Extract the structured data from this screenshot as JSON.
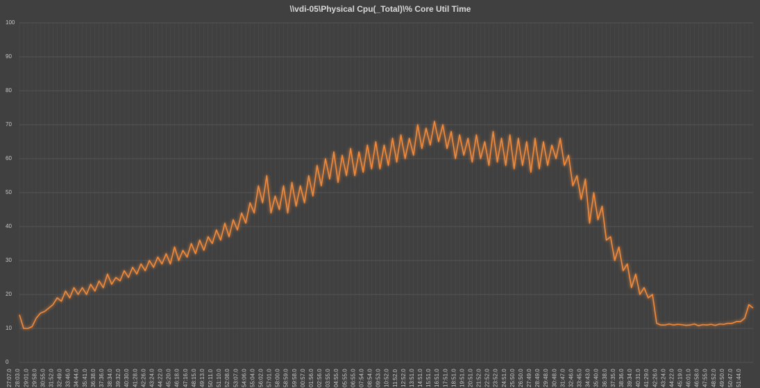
{
  "chart_data": {
    "type": "line",
    "title": "\\\\vdi-05\\Physical Cpu(_Total)\\% Core Util Time",
    "ylim": [
      0,
      100
    ],
    "yticks": [
      0,
      10,
      20,
      30,
      40,
      50,
      60,
      70,
      80,
      90,
      100
    ],
    "grid": true,
    "categories": [
      "27:07.0",
      null,
      "28:03.0",
      null,
      "29:01.0",
      null,
      "29:58.0",
      null,
      "30:55.0",
      null,
      "31:52.0",
      null,
      "32:49.0",
      null,
      "33:46.0",
      null,
      "34:44.0",
      null,
      "35:41.0",
      null,
      "36:38.0",
      null,
      "37:36.0",
      null,
      "38:34.0",
      null,
      "39:32.0",
      null,
      "40:30.0",
      null,
      "41:28.0",
      null,
      "42:26.0",
      null,
      "43:24.0",
      null,
      "44:22.0",
      null,
      "45:20.0",
      null,
      "46:18.0",
      null,
      "47:16.0",
      null,
      "48:15.0",
      null,
      "49:13.0",
      null,
      "50:11.0",
      null,
      "51:10.0",
      null,
      "52:08.0",
      null,
      "53:07.0",
      null,
      "54:06.0",
      null,
      "55:04.0",
      null,
      "56:02.0",
      null,
      "57:01.0",
      null,
      "58:00.0",
      null,
      "58:59.0",
      null,
      "59:58.0",
      null,
      "00:57.0",
      null,
      "01:56.0",
      null,
      "02:56.0",
      null,
      "03:55.0",
      null,
      "04:55.0",
      null,
      "05:55.0",
      null,
      "06:55.0",
      null,
      "07:54.0",
      null,
      "08:54.0",
      null,
      "09:53.0",
      null,
      "10:52.0",
      null,
      "11:52.0",
      null,
      "12:52.0",
      null,
      "13:51.0",
      null,
      "14:51.0",
      null,
      "15:51.0",
      null,
      "16:51.0",
      null,
      "17:51.0",
      null,
      "18:51.0",
      null,
      "19:51.0",
      null,
      "20:51.0",
      null,
      "21:52.0",
      null,
      "22:52.0",
      null,
      "23:52.0",
      null,
      "24:51.0",
      null,
      "25:50.0",
      null,
      "26:50.0",
      null,
      "27:49.0",
      null,
      "28:49.0",
      null,
      "29:48.0",
      null,
      "30:48.0",
      null,
      "31:47.0",
      null,
      "32:46.0",
      null,
      "33:45.0",
      null,
      "34:43.0",
      null,
      "35:40.0",
      null,
      "36:38.0",
      null,
      "37:35.0",
      null,
      "38:36.0",
      null,
      "39:34.0",
      null,
      "40:31.0",
      null,
      "41:29.0",
      null,
      "42:26.0",
      null,
      "43:24.0",
      null,
      "44:22.0",
      null,
      "45:19.0",
      null,
      "46:01.0",
      null,
      "46:58.0",
      null,
      "47:55.0",
      null,
      "48:52.0",
      null,
      "49:50.0",
      null,
      "50:47.0",
      null,
      "51:44.0",
      null
    ],
    "series": [
      {
        "name": "% Core Util Time",
        "color": "#f08a3c",
        "values": [
          14,
          10,
          10,
          10.5,
          13,
          14.5,
          15,
          16,
          17,
          19,
          18,
          21,
          19,
          22,
          20,
          22,
          20,
          23,
          21,
          24,
          22,
          26,
          23,
          25,
          24,
          27,
          25,
          28,
          26,
          29,
          27,
          30,
          28,
          31,
          29,
          32,
          29,
          34,
          30,
          33,
          31,
          35,
          32,
          36,
          33,
          37,
          35,
          39,
          36,
          41,
          37,
          42,
          39,
          44,
          41,
          47,
          44,
          52,
          47,
          55,
          44,
          49,
          45,
          52,
          44,
          53,
          46,
          52,
          47,
          55,
          49,
          58,
          52,
          60,
          54,
          62,
          53,
          61,
          55,
          63,
          55,
          62,
          56,
          64,
          57,
          65,
          57,
          64,
          58,
          66,
          59,
          67,
          60,
          66,
          61,
          70,
          63,
          69,
          64,
          71,
          65,
          70,
          63,
          68,
          60,
          67,
          61,
          66,
          59,
          67,
          60,
          65,
          58,
          68,
          59,
          66,
          58,
          67,
          57,
          66,
          58,
          65,
          56,
          66,
          57,
          65,
          58,
          64,
          60,
          66,
          58,
          61,
          52,
          55,
          48,
          54,
          41,
          50,
          42,
          46,
          36,
          37,
          30,
          34,
          27,
          29,
          22,
          26,
          20,
          22,
          19,
          20,
          11.5,
          11,
          11,
          11.3,
          11,
          11.2,
          11.1,
          10.9,
          11,
          11.3,
          10.8,
          11.1,
          11,
          11.2,
          10.9,
          11.3,
          11.2,
          11.5,
          11.5,
          12,
          12,
          13,
          17,
          16
        ]
      }
    ]
  }
}
